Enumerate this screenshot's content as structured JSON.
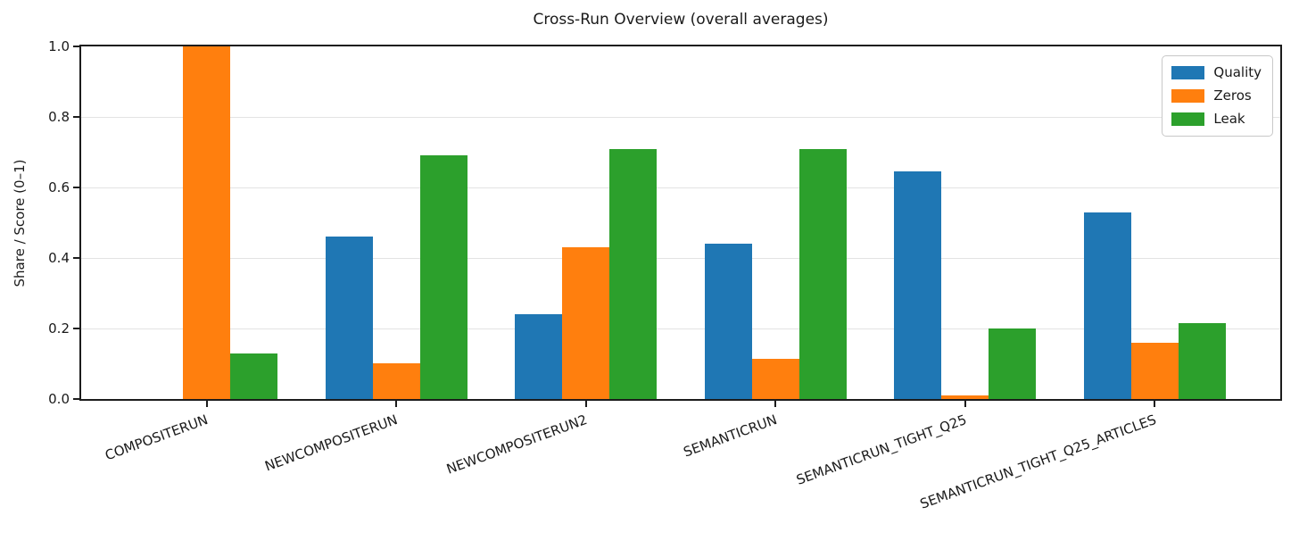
{
  "chart": {
    "title": "Cross-Run Overview (overall averages)",
    "ylabel": "Share / Score (0–1)"
  },
  "chart_data": {
    "type": "bar",
    "title": "Cross-Run Overview (overall averages)",
    "xlabel": "",
    "ylabel": "Share / Score (0–1)",
    "ylim": [
      0.0,
      1.0
    ],
    "yticks": [
      "0.0",
      "0.2",
      "0.4",
      "0.6",
      "0.8",
      "1.0"
    ],
    "grid": true,
    "legend_position": "upper right",
    "categories": [
      "COMPOSITERUN",
      "NEWCOMPOSITERUN",
      "NEWCOMPOSITERUN2",
      "SEMANTICRUN",
      "SEMANTICRUN_TIGHT_Q25",
      "SEMANTICRUN_TIGHT_Q25_ARTICLES"
    ],
    "series": [
      {
        "name": "Quality",
        "color": "#1f77b4",
        "values": [
          0.0,
          0.46,
          0.24,
          0.44,
          0.645,
          0.53
        ]
      },
      {
        "name": "Zeros",
        "color": "#ff7f0e",
        "values": [
          1.0,
          0.1,
          0.43,
          0.115,
          0.01,
          0.16
        ]
      },
      {
        "name": "Leak",
        "color": "#2ca02c",
        "values": [
          0.13,
          0.69,
          0.71,
          0.71,
          0.2,
          0.215
        ]
      }
    ]
  }
}
